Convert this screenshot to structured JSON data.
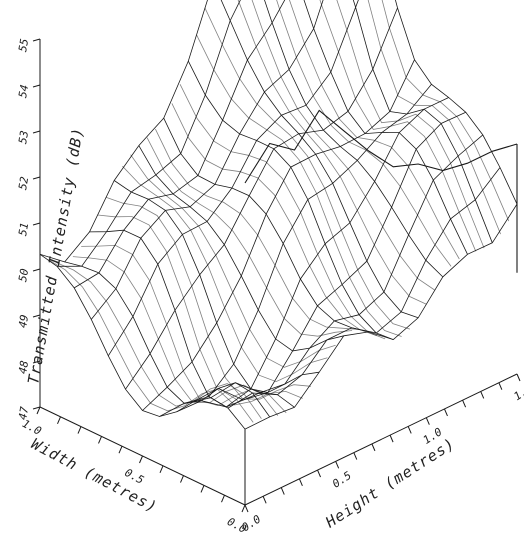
{
  "chart_data": {
    "type": "surface",
    "title": "",
    "zlabel": "Transmitted Intensity (dB)",
    "xlabel": "Width (metres)",
    "ylabel": "Height (metres)",
    "xlim": [
      0.0,
      1.0
    ],
    "ylim": [
      0.0,
      1.5
    ],
    "zlim": [
      47,
      55
    ],
    "z_ticks": [
      "47",
      "48",
      "49",
      "50",
      "51",
      "52",
      "53",
      "54",
      "55"
    ],
    "x_ticks": [
      {
        "value": 0.0,
        "label": "0.0"
      },
      {
        "value": 0.5,
        "label": "0.5"
      },
      {
        "value": 1.0,
        "label": "1.0"
      }
    ],
    "y_ticks": [
      {
        "value": 0.0,
        "label": "0.0"
      },
      {
        "value": 0.5,
        "label": "0.5"
      },
      {
        "value": 1.0,
        "label": "1.0"
      },
      {
        "value": 1.5,
        "label": "1.5"
      }
    ],
    "width_samples": [
      0.0,
      0.083,
      0.167,
      0.25,
      0.333,
      0.417,
      0.5,
      0.583,
      0.667,
      0.75,
      0.833,
      0.917,
      1.0
    ],
    "height_samples": [
      0.0,
      0.136,
      0.273,
      0.409,
      0.545,
      0.682,
      0.818,
      0.955,
      1.091,
      1.227,
      1.364,
      1.5
    ],
    "edge_profile_at_width_0": {
      "height": [
        0.0,
        0.136,
        0.273,
        0.409,
        0.545,
        0.682,
        0.818,
        0.955,
        1.091,
        1.227,
        1.364,
        1.5
      ],
      "intensity": [
        54.0,
        54.6,
        54.2,
        54.8,
        54.1,
        53.4,
        52.8,
        52.6,
        52.2,
        52.1,
        52.1,
        52.0
      ]
    },
    "grid": false
  }
}
